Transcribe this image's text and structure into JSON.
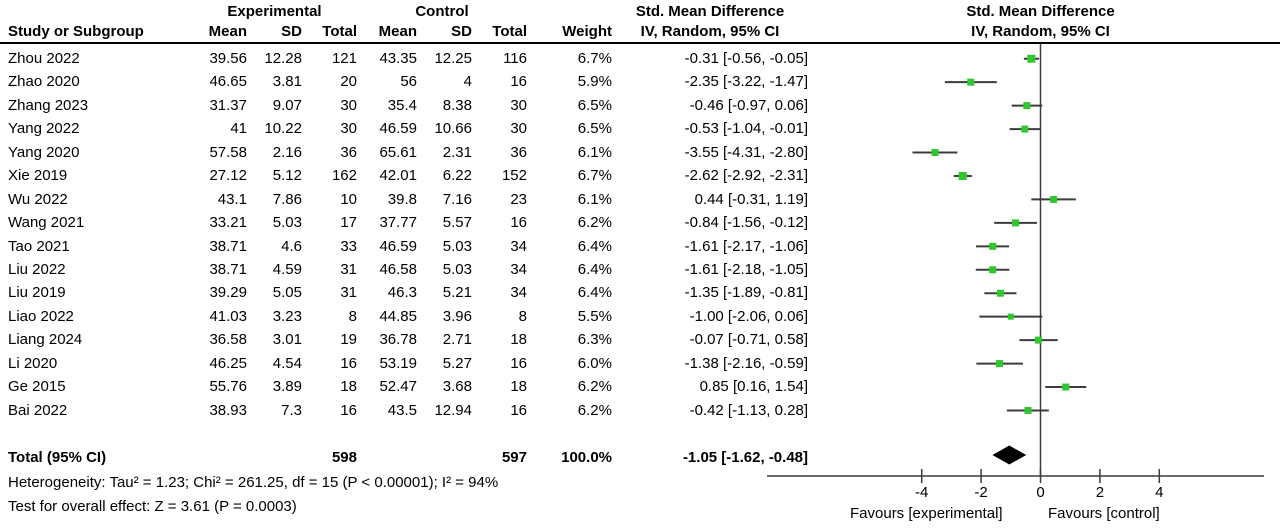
{
  "header": {
    "group_experimental": "Experimental",
    "group_control": "Control",
    "smd_left_line1": "Std. Mean Difference",
    "smd_left_line2": "IV, Random, 95% CI",
    "smd_right_line1": "Std. Mean Difference",
    "smd_right_line2": "IV, Random, 95% CI",
    "study_col": "Study or Subgroup",
    "mean": "Mean",
    "sd": "SD",
    "total": "Total",
    "mean2": "Mean",
    "sd2": "SD",
    "total2": "Total",
    "weight": "Weight"
  },
  "totals_row": {
    "label": "Total (95% CI)",
    "e_total": "598",
    "c_total": "597",
    "weight": "100.0%",
    "ci_text": "-1.05 [-1.62, -0.48]"
  },
  "footer": {
    "heterogeneity": "Heterogeneity: Tau² = 1.23; Chi² = 261.25, df = 15 (P < 0.00001); I² = 94%",
    "overall_effect": "Test for overall effect: Z = 3.61 (P = 0.0003)"
  },
  "axis": {
    "ticks": [
      "-4",
      "-2",
      "0",
      "2",
      "4"
    ],
    "tick_values": [
      -4,
      -2,
      0,
      2,
      4
    ],
    "favours_left": "Favours [experimental]",
    "favours_right": "Favours [control]"
  },
  "colors": {
    "marker_green": "#2EC82E",
    "ci_line": "#3c3c3c",
    "axis_line": "#3c3c3c",
    "diamond": "#000000"
  },
  "chart_data": {
    "type": "scatter",
    "subtype": "forest-plot-meta-analysis",
    "effect_measure": "Std. Mean Difference",
    "model": "IV, Random, 95% CI",
    "x_ticks": [
      -4,
      -2,
      0,
      2,
      4
    ],
    "studies": [
      {
        "name": "Zhou 2022",
        "e_mean": "39.56",
        "e_sd": "12.28",
        "e_total": "121",
        "c_mean": "43.35",
        "c_sd": "12.25",
        "c_total": "116",
        "weight": "6.7%",
        "ci_text": "-0.31 [-0.56, -0.05]",
        "est": -0.31,
        "lo": -0.56,
        "hi": -0.05
      },
      {
        "name": "Zhao 2020",
        "e_mean": "46.65",
        "e_sd": "3.81",
        "e_total": "20",
        "c_mean": "56",
        "c_sd": "4",
        "c_total": "16",
        "weight": "5.9%",
        "ci_text": "-2.35 [-3.22, -1.47]",
        "est": -2.35,
        "lo": -3.22,
        "hi": -1.47
      },
      {
        "name": "Zhang 2023",
        "e_mean": "31.37",
        "e_sd": "9.07",
        "e_total": "30",
        "c_mean": "35.4",
        "c_sd": "8.38",
        "c_total": "30",
        "weight": "6.5%",
        "ci_text": "-0.46 [-0.97, 0.06]",
        "est": -0.46,
        "lo": -0.97,
        "hi": 0.06
      },
      {
        "name": "Yang 2022",
        "e_mean": "41",
        "e_sd": "10.22",
        "e_total": "30",
        "c_mean": "46.59",
        "c_sd": "10.66",
        "c_total": "30",
        "weight": "6.5%",
        "ci_text": "-0.53 [-1.04, -0.01]",
        "est": -0.53,
        "lo": -1.04,
        "hi": -0.01
      },
      {
        "name": "Yang 2020",
        "e_mean": "57.58",
        "e_sd": "2.16",
        "e_total": "36",
        "c_mean": "65.61",
        "c_sd": "2.31",
        "c_total": "36",
        "weight": "6.1%",
        "ci_text": "-3.55 [-4.31, -2.80]",
        "est": -3.55,
        "lo": -4.31,
        "hi": -2.8
      },
      {
        "name": "Xie 2019",
        "e_mean": "27.12",
        "e_sd": "5.12",
        "e_total": "162",
        "c_mean": "42.01",
        "c_sd": "6.22",
        "c_total": "152",
        "weight": "6.7%",
        "ci_text": "-2.62 [-2.92, -2.31]",
        "est": -2.62,
        "lo": -2.92,
        "hi": -2.31
      },
      {
        "name": "Wu 2022",
        "e_mean": "43.1",
        "e_sd": "7.86",
        "e_total": "10",
        "c_mean": "39.8",
        "c_sd": "7.16",
        "c_total": "23",
        "weight": "6.1%",
        "ci_text": "0.44 [-0.31, 1.19]",
        "est": 0.44,
        "lo": -0.31,
        "hi": 1.19
      },
      {
        "name": "Wang 2021",
        "e_mean": "33.21",
        "e_sd": "5.03",
        "e_total": "17",
        "c_mean": "37.77",
        "c_sd": "5.57",
        "c_total": "16",
        "weight": "6.2%",
        "ci_text": "-0.84 [-1.56, -0.12]",
        "est": -0.84,
        "lo": -1.56,
        "hi": -0.12
      },
      {
        "name": "Tao 2021",
        "e_mean": "38.71",
        "e_sd": "4.6",
        "e_total": "33",
        "c_mean": "46.59",
        "c_sd": "5.03",
        "c_total": "34",
        "weight": "6.4%",
        "ci_text": "-1.61 [-2.17, -1.06]",
        "est": -1.61,
        "lo": -2.17,
        "hi": -1.06
      },
      {
        "name": "Liu 2022",
        "e_mean": "38.71",
        "e_sd": "4.59",
        "e_total": "31",
        "c_mean": "46.58",
        "c_sd": "5.03",
        "c_total": "34",
        "weight": "6.4%",
        "ci_text": "-1.61 [-2.18, -1.05]",
        "est": -1.61,
        "lo": -2.18,
        "hi": -1.05
      },
      {
        "name": "Liu 2019",
        "e_mean": "39.29",
        "e_sd": "5.05",
        "e_total": "31",
        "c_mean": "46.3",
        "c_sd": "5.21",
        "c_total": "34",
        "weight": "6.4%",
        "ci_text": "-1.35 [-1.89, -0.81]",
        "est": -1.35,
        "lo": -1.89,
        "hi": -0.81
      },
      {
        "name": "Liao 2022",
        "e_mean": "41.03",
        "e_sd": "3.23",
        "e_total": "8",
        "c_mean": "44.85",
        "c_sd": "3.96",
        "c_total": "8",
        "weight": "5.5%",
        "ci_text": "-1.00 [-2.06, 0.06]",
        "est": -1.0,
        "lo": -2.06,
        "hi": 0.06
      },
      {
        "name": "Liang 2024",
        "e_mean": "36.58",
        "e_sd": "3.01",
        "e_total": "19",
        "c_mean": "36.78",
        "c_sd": "2.71",
        "c_total": "18",
        "weight": "6.3%",
        "ci_text": "-0.07 [-0.71, 0.58]",
        "est": -0.07,
        "lo": -0.71,
        "hi": 0.58
      },
      {
        "name": "Li 2020",
        "e_mean": "46.25",
        "e_sd": "4.54",
        "e_total": "16",
        "c_mean": "53.19",
        "c_sd": "5.27",
        "c_total": "16",
        "weight": "6.0%",
        "ci_text": "-1.38 [-2.16, -0.59]",
        "est": -1.38,
        "lo": -2.16,
        "hi": -0.59
      },
      {
        "name": "Ge 2015",
        "e_mean": "55.76",
        "e_sd": "3.89",
        "e_total": "18",
        "c_mean": "52.47",
        "c_sd": "3.68",
        "c_total": "18",
        "weight": "6.2%",
        "ci_text": "0.85 [0.16, 1.54]",
        "est": 0.85,
        "lo": 0.16,
        "hi": 1.54
      },
      {
        "name": "Bai 2022",
        "e_mean": "38.93",
        "e_sd": "7.3",
        "e_total": "16",
        "c_mean": "43.5",
        "c_sd": "12.94",
        "c_total": "16",
        "weight": "6.2%",
        "ci_text": "-0.42 [-1.13, 0.28]",
        "est": -0.42,
        "lo": -1.13,
        "hi": 0.28
      }
    ],
    "total": {
      "label": "Total (95% CI)",
      "e_total": 598,
      "c_total": 597,
      "weight_pct": 100.0,
      "est": -1.05,
      "lo": -1.62,
      "hi": -0.48
    },
    "heterogeneity": {
      "tau2": 1.23,
      "chi2": 261.25,
      "df": 15,
      "p": "< 0.00001",
      "i2_pct": 94
    },
    "overall_effect": {
      "z": 3.61,
      "p": "= 0.0003"
    },
    "favours_left": "Favours [experimental]",
    "favours_right": "Favours [control]"
  }
}
